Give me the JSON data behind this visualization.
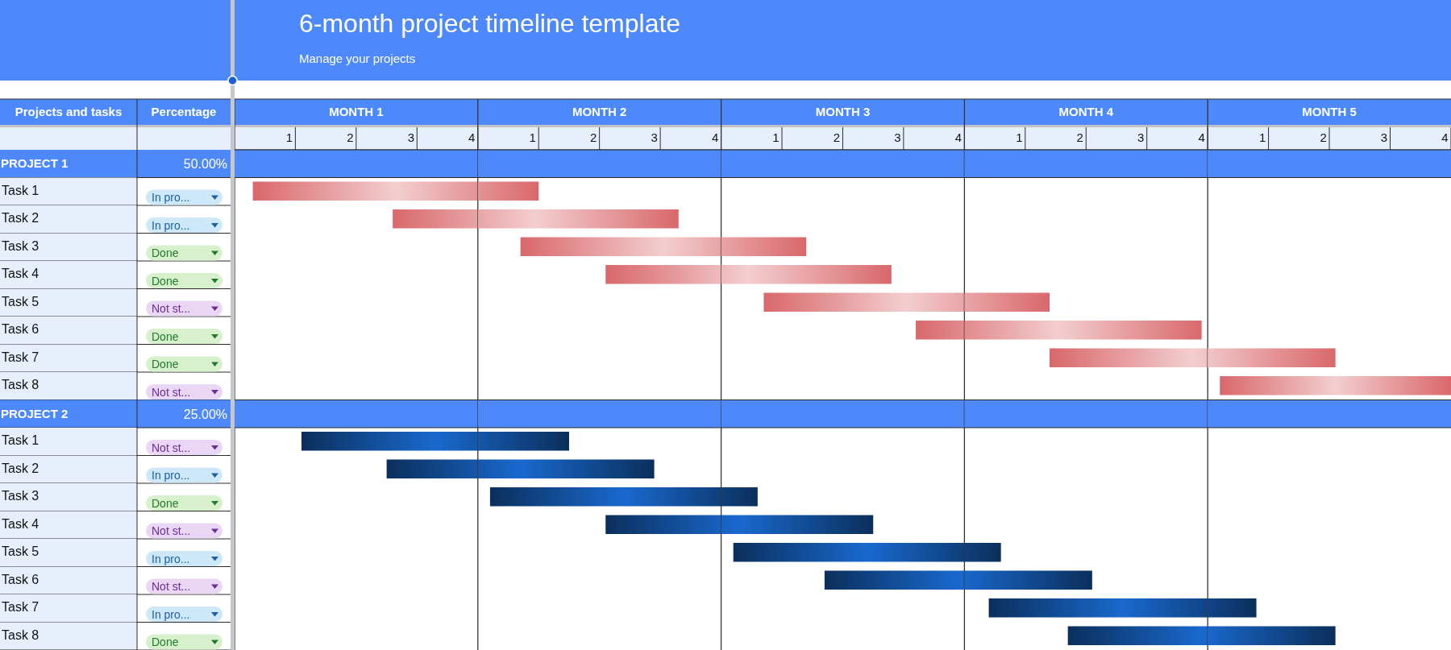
{
  "chart_data": [
    {
      "type": "other",
      "title": "6-month project timeline template",
      "subtitle": "Manage your projects"
    },
    {
      "type": "other",
      "ylabel": "Projects and tasks",
      "y2label": "Percentage",
      "categories": [
        "PROJECT 1",
        "Task 1",
        "Task 2",
        "Task 3",
        "Task 4",
        "Task 5",
        "Task 6",
        "Task 7",
        "Task 8",
        "PROJECT 2",
        "Task 1",
        "Task 2",
        "Task 3",
        "Task 4",
        "Task 5",
        "Task 6",
        "Task 7",
        "Task 8"
      ],
      "y2_categories": [
        "50.00%",
        "In pro...",
        "In pro...",
        "Done",
        "Done",
        "Not st...",
        "Done",
        "Done",
        "Not st...",
        "25.00%",
        "Not st...",
        "In pro...",
        "Done",
        "Not st...",
        "In pro...",
        "Not st...",
        "In pro...",
        "Done"
      ]
    },
    {
      "type": "bar",
      "orientation": "horizontal",
      "xlabel": "MONTH 1",
      "tick_labels": "x",
      "categories": [
        "PROJECT 1",
        null,
        null,
        null,
        null,
        null,
        null,
        null,
        null,
        "PROJECT 2",
        null,
        null,
        null,
        null,
        null,
        null,
        null,
        null
      ],
      "base": [
        null,
        0.3,
        2.6,
        null,
        null,
        null,
        null,
        null,
        null,
        null,
        1.1,
        2.5,
        null,
        null,
        null,
        null,
        null,
        null
      ],
      "values": [
        null,
        3.7,
        1.4,
        null,
        null,
        null,
        null,
        null,
        null,
        null,
        2.9,
        1.5,
        null,
        null,
        null,
        null,
        null,
        null
      ],
      "colors": [
        null,
        "#d9686b",
        "#d9686b",
        null,
        null,
        null,
        null,
        null,
        null,
        null,
        "#0b2f5c",
        "#0b2f5c",
        null,
        null,
        null,
        null,
        null,
        null
      ],
      "xlim": [
        0,
        4
      ],
      "xticks": [
        {
          "value": 0.9,
          "label": "1"
        },
        {
          "value": 1.9,
          "label": "2"
        },
        {
          "value": 2.9,
          "label": "3"
        },
        {
          "value": 3.9,
          "label": "4"
        }
      ],
      "bands": [
        {
          "axis": "y",
          "from": "PROJECT 1",
          "to": "PROJECT 1",
          "color": "#4e89fb"
        },
        {
          "axis": "y",
          "from": "PROJECT 2",
          "to": "PROJECT 2",
          "color": "#4e89fb"
        }
      ]
    },
    {
      "type": "bar",
      "orientation": "horizontal",
      "xlabel": "MONTH 2",
      "tick_labels": "x",
      "categories": [
        "PROJECT 1",
        null,
        null,
        null,
        null,
        null,
        null,
        null,
        null,
        "PROJECT 2",
        null,
        null,
        null,
        null,
        null,
        null,
        null,
        null
      ],
      "base": [
        null,
        0,
        0,
        0.7,
        2.1,
        null,
        null,
        null,
        null,
        null,
        0,
        0,
        0.2,
        2.1,
        null,
        null,
        null,
        null
      ],
      "values": [
        null,
        1.0,
        3.3,
        3.3,
        1.9,
        null,
        null,
        null,
        null,
        null,
        1.5,
        2.9,
        3.8,
        1.9,
        null,
        null,
        null,
        null
      ],
      "colors": [
        null,
        "#d9686b",
        "#d9686b",
        "#d9686b",
        "#d9686b",
        null,
        null,
        null,
        null,
        null,
        "#0b2f5c",
        "#0b2f5c",
        "#0b2f5c",
        "#0b2f5c",
        null,
        null,
        null,
        null
      ],
      "xlim": [
        0,
        4
      ],
      "xticks": [
        {
          "value": 0.9,
          "label": "1"
        },
        {
          "value": 1.9,
          "label": "2"
        },
        {
          "value": 2.9,
          "label": "3"
        },
        {
          "value": 3.9,
          "label": "4"
        }
      ],
      "bands": [
        {
          "axis": "y",
          "from": "PROJECT 1",
          "to": "PROJECT 1",
          "color": "#4e89fb"
        },
        {
          "axis": "y",
          "from": "PROJECT 2",
          "to": "PROJECT 2",
          "color": "#4e89fb"
        }
      ]
    },
    {
      "type": "bar",
      "orientation": "horizontal",
      "xlabel": "MONTH 3",
      "tick_labels": "x",
      "categories": [
        "PROJECT 1",
        null,
        null,
        null,
        null,
        null,
        null,
        null,
        null,
        "PROJECT 2",
        null,
        null,
        null,
        null,
        null,
        null,
        null,
        null
      ],
      "base": [
        null,
        null,
        null,
        0,
        0,
        0.7,
        3.2,
        null,
        null,
        null,
        null,
        null,
        0,
        0,
        0.2,
        1.7,
        null,
        null
      ],
      "values": [
        null,
        null,
        null,
        1.4,
        2.8,
        3.3,
        0.8,
        null,
        null,
        null,
        null,
        null,
        0.6,
        2.5,
        3.8,
        2.3,
        null,
        null
      ],
      "colors": [
        null,
        null,
        null,
        "#d9686b",
        "#d9686b",
        "#d9686b",
        "#d9686b",
        null,
        null,
        null,
        null,
        null,
        "#0b2f5c",
        "#0b2f5c",
        "#0b2f5c",
        "#0b2f5c",
        null,
        null
      ],
      "xlim": [
        0,
        4
      ],
      "xticks": [
        {
          "value": 0.9,
          "label": "1"
        },
        {
          "value": 1.9,
          "label": "2"
        },
        {
          "value": 2.9,
          "label": "3"
        },
        {
          "value": 3.9,
          "label": "4"
        }
      ],
      "bands": [
        {
          "axis": "y",
          "from": "PROJECT 1",
          "to": "PROJECT 1",
          "color": "#4e89fb"
        },
        {
          "axis": "y",
          "from": "PROJECT 2",
          "to": "PROJECT 2",
          "color": "#4e89fb"
        }
      ]
    },
    {
      "type": "bar",
      "orientation": "horizontal",
      "xlabel": "MONTH 4",
      "tick_labels": "x",
      "categories": [
        "PROJECT 1",
        null,
        null,
        null,
        null,
        null,
        null,
        null,
        null,
        "PROJECT 2",
        null,
        null,
        null,
        null,
        null,
        null,
        null,
        null
      ],
      "base": [
        null,
        null,
        null,
        null,
        null,
        0,
        0,
        1.4,
        null,
        null,
        null,
        null,
        null,
        null,
        0,
        0,
        0.4,
        1.7
      ],
      "values": [
        null,
        null,
        null,
        null,
        null,
        1.4,
        3.9,
        2.6,
        null,
        null,
        null,
        null,
        null,
        null,
        0.6,
        2.1,
        3.6,
        2.3
      ],
      "colors": [
        null,
        null,
        null,
        null,
        null,
        "#d9686b",
        "#d9686b",
        "#d9686b",
        null,
        null,
        null,
        null,
        null,
        null,
        "#0b2f5c",
        "#0b2f5c",
        "#0b2f5c",
        "#0b2f5c"
      ],
      "xlim": [
        0,
        4
      ],
      "xticks": [
        {
          "value": 0.9,
          "label": "1"
        },
        {
          "value": 1.9,
          "label": "2"
        },
        {
          "value": 2.9,
          "label": "3"
        },
        {
          "value": 3.9,
          "label": "4"
        }
      ],
      "bands": [
        {
          "axis": "y",
          "from": "PROJECT 1",
          "to": "PROJECT 1",
          "color": "#4e89fb"
        },
        {
          "axis": "y",
          "from": "PROJECT 2",
          "to": "PROJECT 2",
          "color": "#4e89fb"
        }
      ]
    },
    {
      "type": "bar",
      "orientation": "horizontal",
      "xlabel": "MONTH 5",
      "tick_labels": "x",
      "categories": [
        "PROJECT 1",
        null,
        null,
        null,
        null,
        null,
        null,
        null,
        null,
        "PROJECT 2",
        null,
        null,
        null,
        null,
        null,
        null,
        null,
        null
      ],
      "base": [
        null,
        null,
        null,
        null,
        null,
        null,
        null,
        0,
        0.2,
        null,
        null,
        null,
        null,
        null,
        null,
        null,
        0,
        0
      ],
      "values": [
        null,
        null,
        null,
        null,
        null,
        null,
        null,
        2.1,
        3.8,
        null,
        null,
        null,
        null,
        null,
        null,
        null,
        0.8,
        2.1
      ],
      "colors": [
        null,
        null,
        null,
        null,
        null,
        null,
        null,
        "#d9686b",
        "#d9686b",
        null,
        null,
        null,
        null,
        null,
        null,
        null,
        "#0b2f5c",
        "#0b2f5c"
      ],
      "xlim": [
        0,
        4
      ],
      "xticks": [
        {
          "value": 0.9,
          "label": "1"
        },
        {
          "value": 1.9,
          "label": "2"
        },
        {
          "value": 2.9,
          "label": "3"
        },
        {
          "value": 3.9,
          "label": "4"
        }
      ],
      "bands": [
        {
          "axis": "y",
          "from": "PROJECT 1",
          "to": "PROJECT 1",
          "color": "#4e89fb"
        },
        {
          "axis": "y",
          "from": "PROJECT 2",
          "to": "PROJECT 2",
          "color": "#4e89fb"
        }
      ]
    }
  ]
}
